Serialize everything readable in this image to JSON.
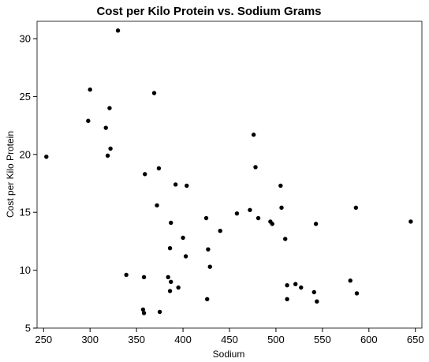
{
  "chart_data": {
    "type": "scatter",
    "title": "Cost per Kilo Protein vs. Sodium Grams",
    "xlabel": "Sodium",
    "ylabel": "Cost per Kilo Protein",
    "xlim": [
      243,
      657
    ],
    "ylim": [
      5,
      31.5
    ],
    "xticks": [
      250,
      300,
      350,
      400,
      450,
      500,
      550,
      600,
      650
    ],
    "yticks": [
      5,
      10,
      15,
      20,
      25,
      30
    ],
    "grid": false,
    "series": [
      {
        "points": [
          [
            253,
            19.8
          ],
          [
            298,
            22.9
          ],
          [
            300,
            25.6
          ],
          [
            317,
            22.3
          ],
          [
            319,
            19.9
          ],
          [
            321,
            24.0
          ],
          [
            322,
            20.5
          ],
          [
            330,
            30.7
          ],
          [
            339,
            9.6
          ],
          [
            357,
            6.6
          ],
          [
            358,
            6.3
          ],
          [
            358,
            9.4
          ],
          [
            359,
            18.3
          ],
          [
            369,
            25.3
          ],
          [
            372,
            15.6
          ],
          [
            374,
            18.8
          ],
          [
            375,
            6.4
          ],
          [
            384,
            9.4
          ],
          [
            386,
            11.9
          ],
          [
            386,
            8.2
          ],
          [
            387,
            14.1
          ],
          [
            387,
            9.0
          ],
          [
            392,
            17.4
          ],
          [
            395,
            8.5
          ],
          [
            400,
            12.8
          ],
          [
            403,
            11.2
          ],
          [
            404,
            17.3
          ],
          [
            425,
            14.5
          ],
          [
            426,
            7.5
          ],
          [
            427,
            11.8
          ],
          [
            429,
            10.3
          ],
          [
            440,
            13.4
          ],
          [
            458,
            14.9
          ],
          [
            472,
            15.2
          ],
          [
            476,
            21.7
          ],
          [
            478,
            18.9
          ],
          [
            481,
            14.5
          ],
          [
            494,
            14.2
          ],
          [
            496,
            14.0
          ],
          [
            505,
            17.3
          ],
          [
            506,
            15.4
          ],
          [
            510,
            12.7
          ],
          [
            512,
            8.7
          ],
          [
            512,
            7.5
          ],
          [
            521,
            8.8
          ],
          [
            527,
            8.5
          ],
          [
            541,
            8.1
          ],
          [
            543,
            14.0
          ],
          [
            544,
            7.3
          ],
          [
            580,
            9.1
          ],
          [
            586,
            15.4
          ],
          [
            587,
            8.0
          ],
          [
            645,
            14.2
          ]
        ]
      }
    ]
  }
}
